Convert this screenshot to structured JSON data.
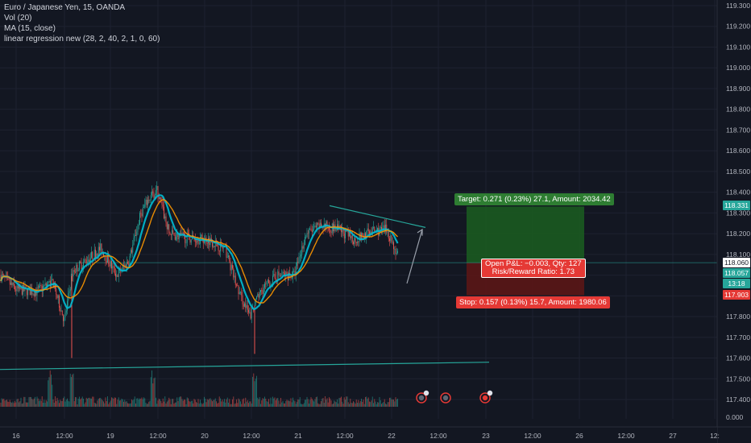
{
  "legend": {
    "symbol": "Euro / Japanese Yen, 15, OANDA",
    "vol": "Vol (20)",
    "ma": "MA (15, close)",
    "linreg": "linear regression new (28, 2, 40, 2, 1, 0, 60)"
  },
  "colors": {
    "background": "#131722",
    "up": "#26a69a",
    "down": "#ef5350",
    "ma": "#00bcd4",
    "linreg": "#ff9800",
    "target_zone": "#1b5e20",
    "stop_zone": "#5b1616"
  },
  "chart_data": {
    "type": "candlestick",
    "y_axis": {
      "range": [
        117.35,
        119.31
      ],
      "ticks": [
        "119.300",
        "119.200",
        "119.100",
        "119.000",
        "118.900",
        "118.800",
        "118.700",
        "118.600",
        "118.500",
        "118.400",
        "118.300",
        "118.200",
        "118.100",
        "118.000",
        "117.900",
        "117.800",
        "117.700",
        "117.600",
        "117.500",
        "117.400"
      ],
      "volume_label": "0.000"
    },
    "x_axis": {
      "ticks": [
        "16",
        "12:00",
        "19",
        "12:00",
        "20",
        "12:00",
        "21",
        "12:00",
        "22",
        "12:00",
        "23",
        "12:00",
        "26",
        "12:00",
        "27",
        "12:"
      ]
    },
    "price_path": [
      {
        "x": 0,
        "y": 118.0
      },
      {
        "x": 20,
        "y": 117.93
      },
      {
        "x": 45,
        "y": 117.92
      },
      {
        "x": 65,
        "y": 117.97
      },
      {
        "x": 80,
        "y": 117.78
      },
      {
        "x": 90,
        "y": 118.02
      },
      {
        "x": 110,
        "y": 118.08
      },
      {
        "x": 125,
        "y": 118.13
      },
      {
        "x": 145,
        "y": 118.0
      },
      {
        "x": 160,
        "y": 118.07
      },
      {
        "x": 175,
        "y": 118.3
      },
      {
        "x": 185,
        "y": 118.37
      },
      {
        "x": 195,
        "y": 118.41
      },
      {
        "x": 210,
        "y": 118.2
      },
      {
        "x": 230,
        "y": 118.18
      },
      {
        "x": 260,
        "y": 118.17
      },
      {
        "x": 280,
        "y": 118.12
      },
      {
        "x": 295,
        "y": 117.93
      },
      {
        "x": 310,
        "y": 117.8
      },
      {
        "x": 325,
        "y": 117.93
      },
      {
        "x": 345,
        "y": 118.0
      },
      {
        "x": 365,
        "y": 118.0
      },
      {
        "x": 380,
        "y": 118.2
      },
      {
        "x": 400,
        "y": 118.24
      },
      {
        "x": 420,
        "y": 118.22
      },
      {
        "x": 440,
        "y": 118.17
      },
      {
        "x": 460,
        "y": 118.21
      },
      {
        "x": 480,
        "y": 118.22
      },
      {
        "x": 493,
        "y": 118.1
      }
    ],
    "current_price": "118.057",
    "countdown": "13:18",
    "target_price": "118.331",
    "stop_price": "117.903",
    "entry_price": "118.060",
    "target_label": "Target: 0.271 (0.23%) 27.1, Amount: 2034.42",
    "stop_label": "Stop: 0.157 (0.13%) 15.7, Amount: 1980.06",
    "pnl_label": "Open P&L: −0.003, Qty: 127",
    "rr_label": "Risk/Reward Ratio: 1.73"
  }
}
